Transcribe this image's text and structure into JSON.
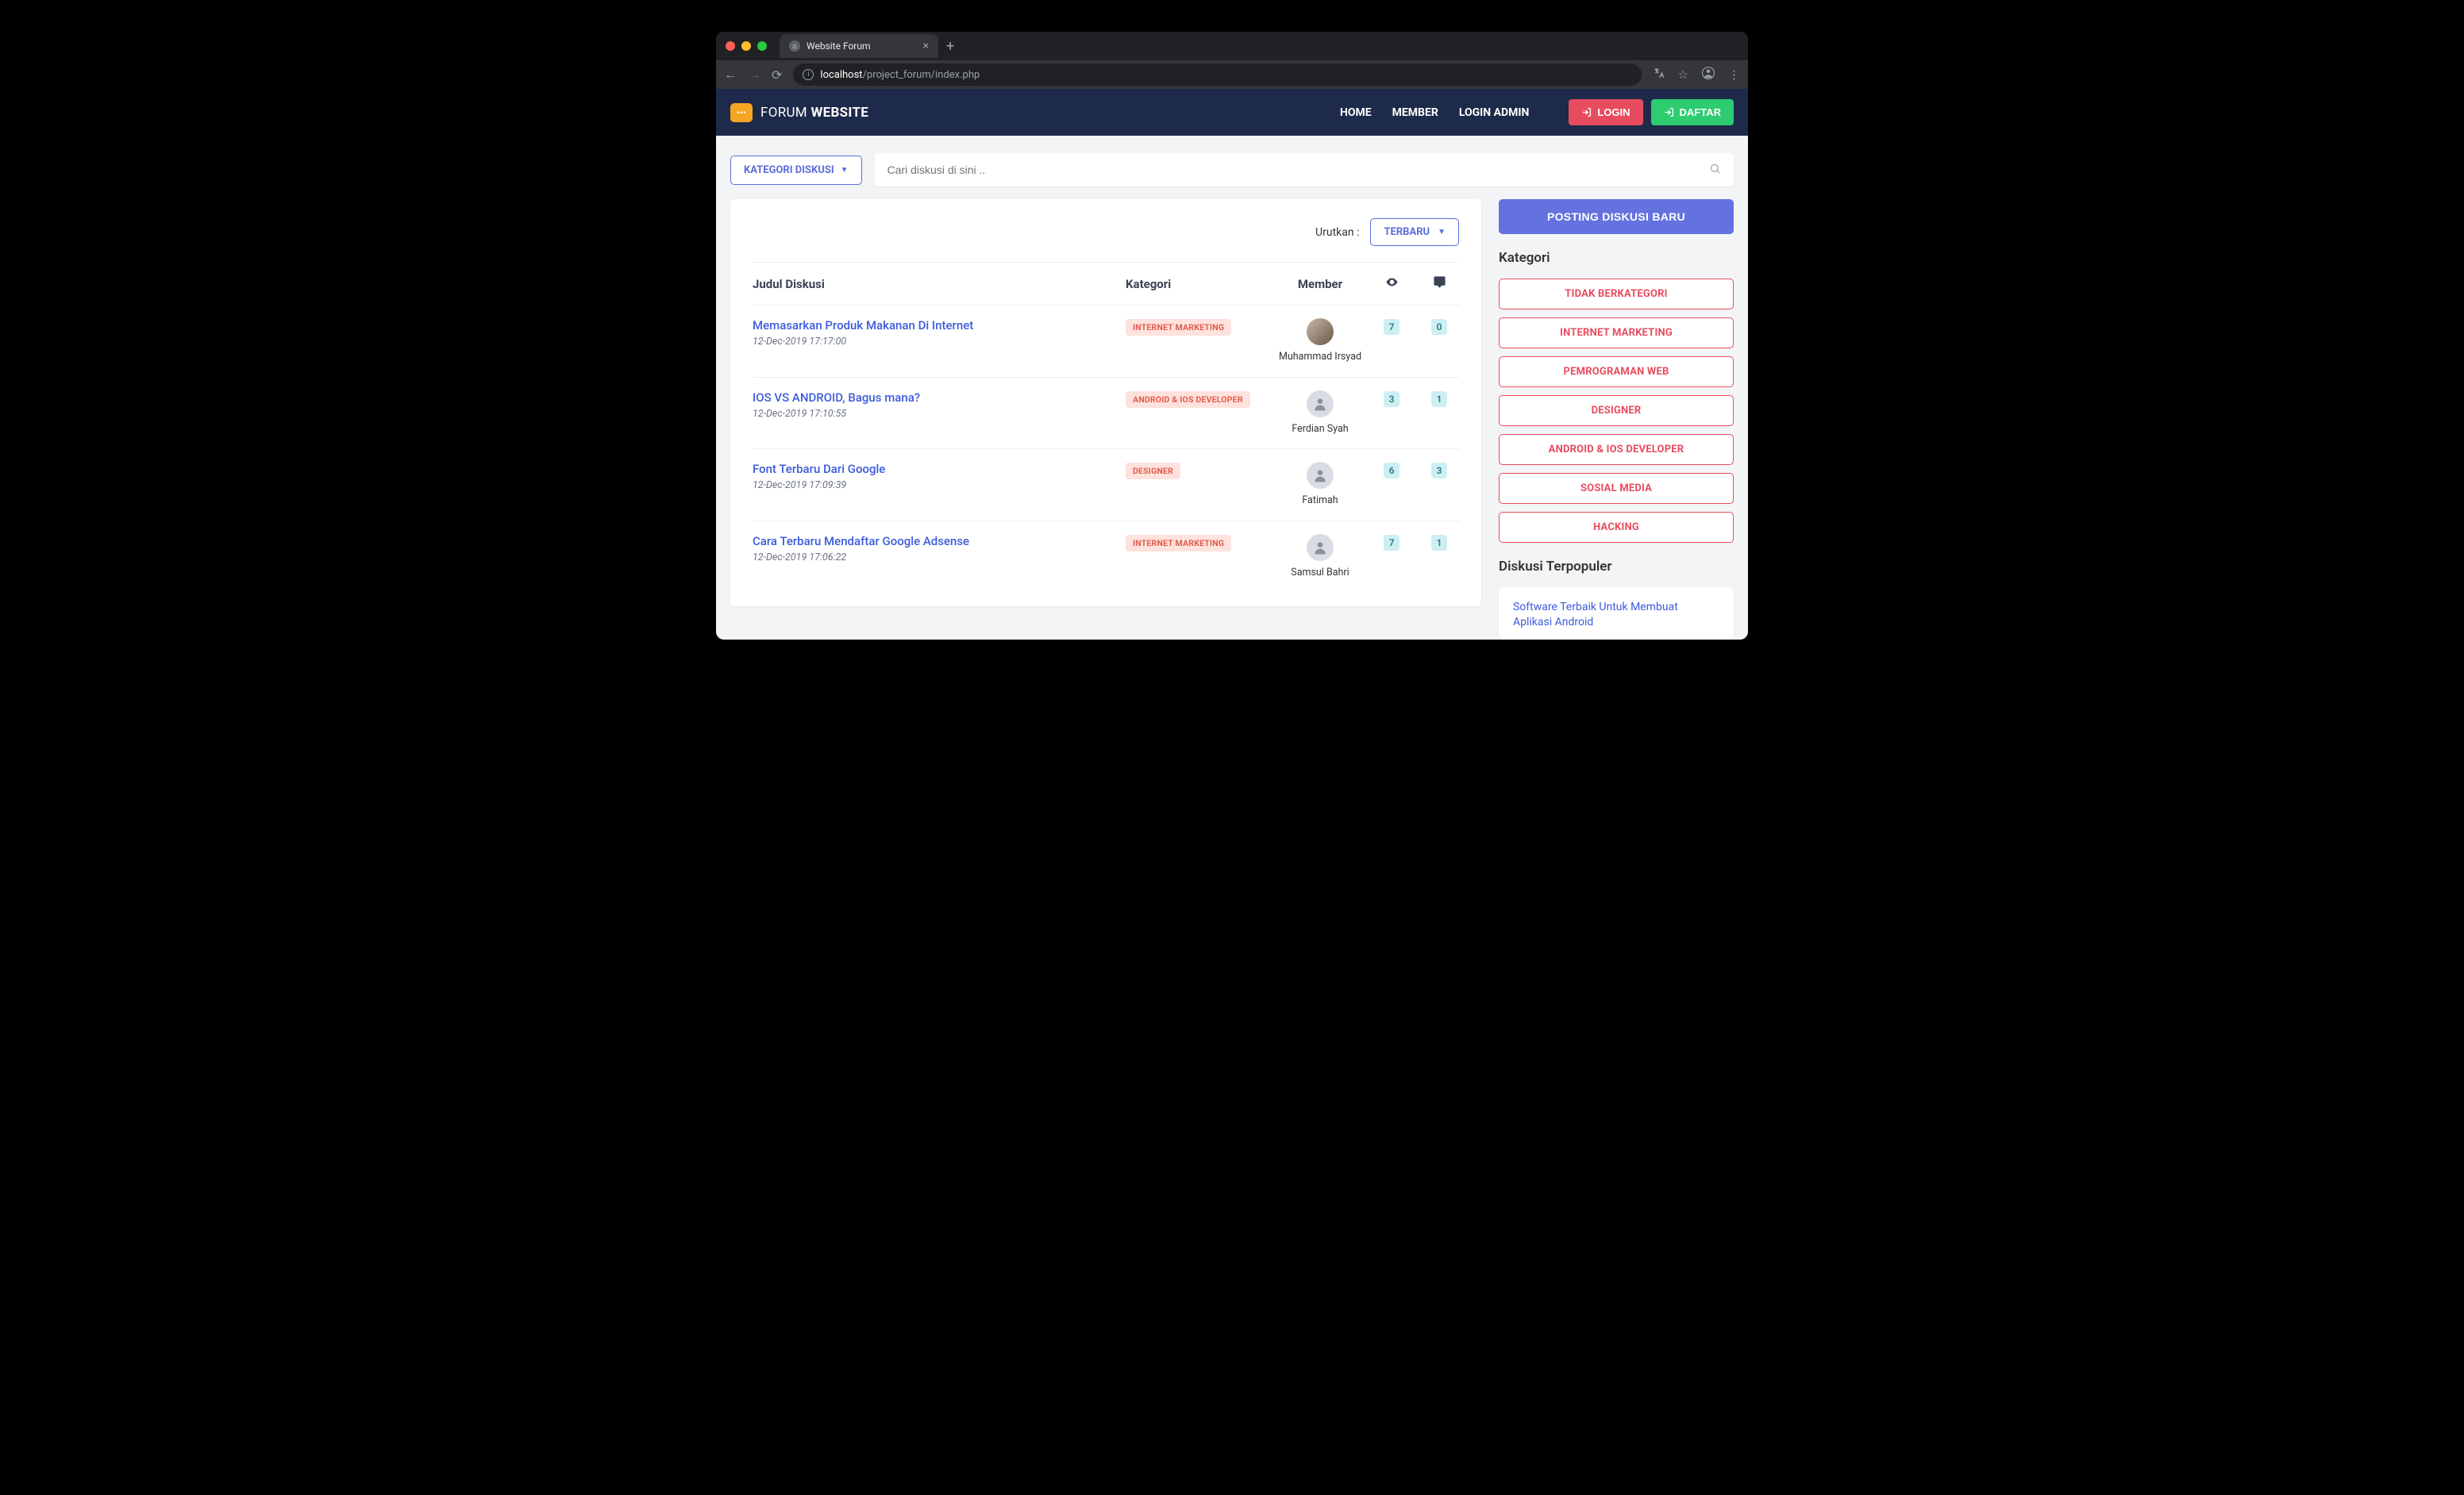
{
  "browser": {
    "tab_title": "Website Forum",
    "url_host": "localhost",
    "url_path": "/project_forum/index.php"
  },
  "navbar": {
    "brand_thin": "FORUM ",
    "brand_bold": "WEBSITE",
    "links": {
      "home": "HOME",
      "member": "MEMBER",
      "login_admin": "LOGIN ADMIN"
    },
    "login_label": "LOGIN",
    "daftar_label": "DAFTAR"
  },
  "toprow": {
    "kategori_label": "KATEGORI DISKUSI",
    "search_placeholder": "Cari diskusi di sini .."
  },
  "sort": {
    "label": "Urutkan :",
    "selected": "TERBARU"
  },
  "table": {
    "headers": {
      "title": "Judul Diskusi",
      "category": "Kategori",
      "member": "Member"
    },
    "rows": [
      {
        "title": "Memasarkan Produk Makanan Di Internet",
        "ts": "12-Dec-2019 17:17:00",
        "category": "INTERNET MARKETING",
        "member": "Muhammad Irsyad",
        "has_img": true,
        "views": "7",
        "comments": "0"
      },
      {
        "title": "IOS VS ANDROID, Bagus mana?",
        "ts": "12-Dec-2019 17:10:55",
        "category": "ANDROID & IOS DEVELOPER",
        "member": "Ferdian Syah",
        "has_img": false,
        "views": "3",
        "comments": "1"
      },
      {
        "title": "Font Terbaru Dari Google",
        "ts": "12-Dec-2019 17:09:39",
        "category": "DESIGNER",
        "member": "Fatimah",
        "has_img": false,
        "views": "6",
        "comments": "3"
      },
      {
        "title": "Cara Terbaru Mendaftar Google Adsense",
        "ts": "12-Dec-2019 17:06:22",
        "category": "INTERNET MARKETING",
        "member": "Samsul Bahri",
        "has_img": false,
        "views": "7",
        "comments": "1"
      }
    ]
  },
  "sidebar": {
    "post_button": "POSTING DISKUSI BARU",
    "kategori_heading": "Kategori",
    "categories": [
      "TIDAK BERKATEGORI",
      "INTERNET MARKETING",
      "PEMROGRAMAN WEB",
      "DESIGNER",
      "ANDROID & IOS DEVELOPER",
      "SOSIAL MEDIA",
      "HACKING"
    ],
    "popular_heading": "Diskusi Terpopuler",
    "popular_link": "Software Terbaik Untuk Membuat Aplikasi Android"
  },
  "colors": {
    "navbar_bg": "#1e2a4a",
    "accent": "#5b6dd9",
    "danger": "#e74c5e",
    "success": "#2ecc71",
    "tag_bg": "#fde2dd",
    "tag_fg": "#e65a4a",
    "badge_bg": "#cdeef2",
    "badge_fg": "#2a7a86",
    "page_bg": "#f3f4f6"
  }
}
